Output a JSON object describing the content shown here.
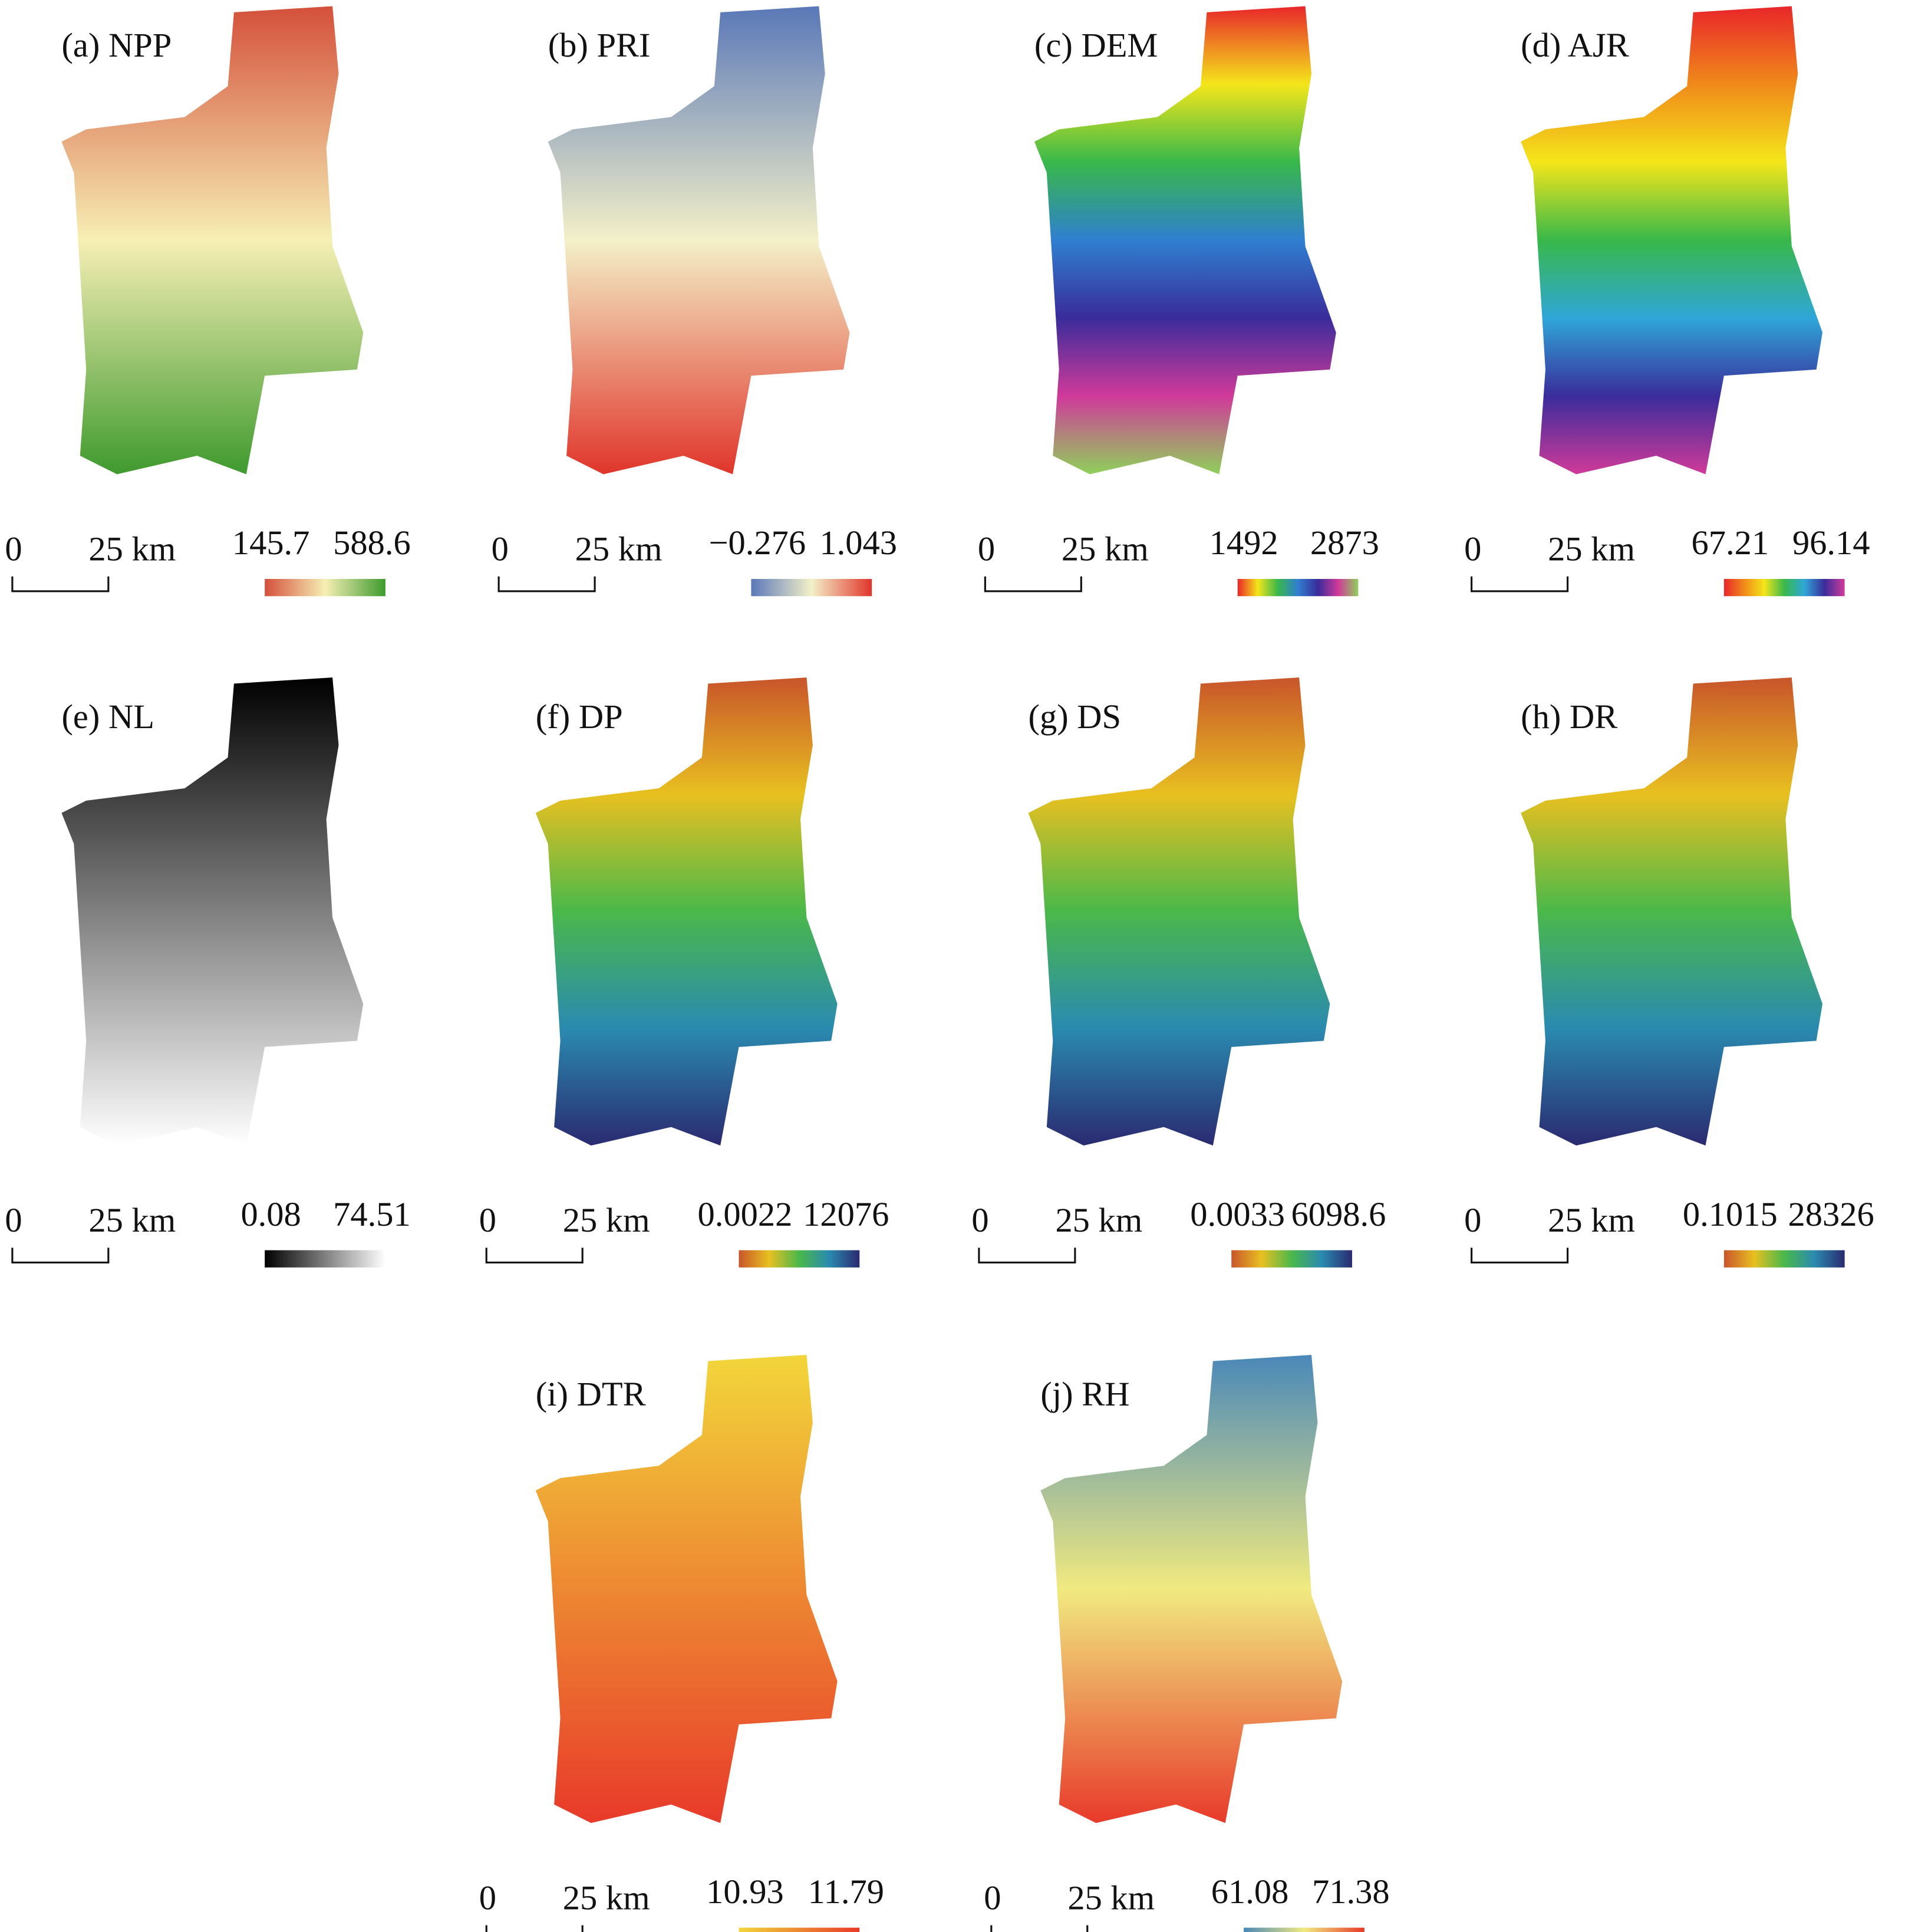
{
  "panels": [
    {
      "title": "(a) NPP",
      "scale_zero": "0",
      "scale_label": "25 km",
      "legend_min": "145.7",
      "legend_max": "588.6",
      "colors": [
        "#d4503a",
        "#f6efb4",
        "#3f9a2e"
      ]
    },
    {
      "title": "(b) PRI",
      "scale_zero": "0",
      "scale_label": "25 km",
      "legend_min": "−0.276",
      "legend_max": "1.043",
      "colors": [
        "#5a78b8",
        "#f3f0c8",
        "#e0352a"
      ]
    },
    {
      "title": "(c) DEM",
      "scale_zero": "0",
      "scale_label": "25 km",
      "legend_min": "1492",
      "legend_max": "2873",
      "colors": [
        "#e8262a",
        "#f4e61a",
        "#38b84a",
        "#2f7fd0",
        "#3a2c9a",
        "#d03a9a",
        "#8fd05a"
      ]
    },
    {
      "title": "(d) AJR",
      "scale_zero": "0",
      "scale_label": "25 km",
      "legend_min": "67.21",
      "legend_max": "96.14",
      "colors": [
        "#e8262a",
        "#f08a1a",
        "#f4e61a",
        "#38b84a",
        "#2fa6d8",
        "#3a2c9a",
        "#d03a9a"
      ]
    },
    {
      "title": "(e) NL",
      "scale_zero": "0",
      "scale_label": "25 km",
      "legend_min": "0.08",
      "legend_max": "74.51",
      "colors": [
        "#000000",
        "#ffffff"
      ]
    },
    {
      "title": "(f) DP",
      "scale_zero": "0",
      "scale_label": "25 km",
      "legend_min": "0.0022",
      "legend_max": "12076",
      "colors": [
        "#c8552a",
        "#e8c020",
        "#4ab84a",
        "#2a8ab0",
        "#2a2a70"
      ]
    },
    {
      "title": "(g) DS",
      "scale_zero": "0",
      "scale_label": "25 km",
      "legend_min": "0.0033",
      "legend_max": "6098.6",
      "colors": [
        "#c8552a",
        "#e8c020",
        "#4ab84a",
        "#2a8ab0",
        "#2a2a70"
      ]
    },
    {
      "title": "(h) DR",
      "scale_zero": "0",
      "scale_label": "25 km",
      "legend_min": "0.1015",
      "legend_max": "28326",
      "colors": [
        "#c8552a",
        "#e8c020",
        "#4ab84a",
        "#2a8ab0",
        "#2a2a70"
      ]
    },
    {
      "title": "(i) DTR",
      "scale_zero": "0",
      "scale_label": "25 km",
      "legend_min": "10.93",
      "legend_max": "11.79",
      "colors": [
        "#f2d63a",
        "#e83a2a"
      ]
    },
    {
      "title": "(j) RH",
      "scale_zero": "0",
      "scale_label": "25 km",
      "legend_min": "61.08",
      "legend_max": "71.38",
      "colors": [
        "#4a88b8",
        "#f0ea80",
        "#e83a2a"
      ]
    }
  ]
}
